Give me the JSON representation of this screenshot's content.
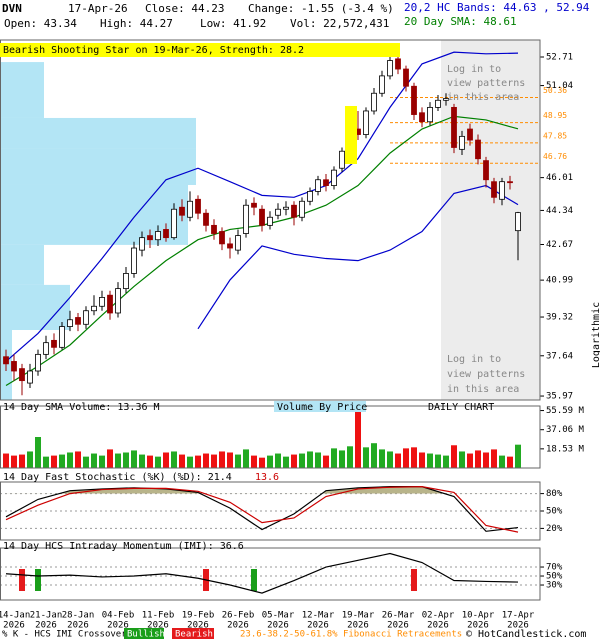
{
  "header": {
    "ticker": "DVN",
    "date": "17-Apr-26",
    "close": "Close: 44.23",
    "change": "Change: -1.55 (-3.4 %)",
    "open": "Open: 43.34",
    "high": "High: 44.27",
    "low": "Low: 41.92",
    "volume": "Vol: 22,572,431",
    "bands": "20,2 HC Bands: 44.63 , 52.94",
    "sma": "20 Day SMA: 48.61"
  },
  "login_note": [
    "Log in to",
    "view patterns",
    "in this area"
  ],
  "footer": {
    "crossover": "% K - HCS IMI Crossover:",
    "fib": "23.6-38.2-50-61.8% Fibonacci Retracements",
    "copyright": "© HotCandlestick.com"
  },
  "chart_data": [
    {
      "type": "candlestick",
      "annotation": "Bearish Shooting Star on 19-Mar-26, Strength: 28.2",
      "axis_label": "Logarithmic",
      "log_scale": true,
      "ylim": [
        35.81,
        53.73
      ],
      "yticks": [
        35.97,
        37.64,
        39.32,
        40.99,
        42.67,
        44.34,
        46.01,
        51.04,
        52.71
      ],
      "up_color": "#ffffff",
      "down_color": "#990000",
      "open": [
        37.6,
        37.4,
        37.1,
        36.5,
        37.0,
        37.7,
        38.3,
        38.0,
        38.9,
        39.3,
        39.0,
        39.6,
        39.8,
        40.3,
        39.5,
        40.6,
        41.3,
        42.4,
        43.1,
        42.9,
        43.4,
        43.0,
        44.5,
        44.0,
        44.9,
        44.2,
        43.6,
        43.3,
        42.7,
        42.4,
        43.2,
        44.7,
        44.4,
        43.6,
        44.1,
        44.4,
        44.6,
        44.0,
        44.8,
        45.3,
        45.9,
        45.6,
        46.5,
        47.4,
        48.6,
        48.3,
        49.6,
        50.6,
        51.6,
        52.6,
        52.0,
        51.0,
        49.5,
        49.0,
        49.8,
        50.2,
        49.8,
        47.5,
        48.6,
        48.0,
        46.9,
        45.8,
        44.9,
        45.8,
        43.34
      ],
      "high": [
        37.9,
        37.7,
        37.3,
        37.3,
        37.9,
        38.5,
        38.6,
        39.1,
        39.6,
        39.5,
        39.8,
        40.3,
        40.5,
        40.5,
        40.9,
        41.6,
        42.8,
        43.3,
        43.4,
        43.6,
        43.7,
        44.7,
        44.9,
        45.3,
        45.1,
        44.4,
        43.9,
        43.5,
        43.0,
        43.4,
        44.9,
        45.0,
        44.6,
        44.3,
        44.7,
        44.8,
        44.8,
        45.0,
        45.5,
        46.1,
        46.2,
        46.6,
        47.6,
        48.5,
        49.6,
        49.8,
        50.9,
        51.9,
        52.8,
        52.9,
        52.2,
        51.2,
        49.8,
        50.1,
        50.5,
        50.6,
        50.0,
        48.5,
        48.9,
        48.3,
        47.1,
        46.0,
        46.0,
        46.1,
        44.27
      ],
      "low": [
        37.0,
        36.6,
        36.0,
        36.3,
        36.8,
        37.5,
        37.7,
        37.9,
        38.7,
        38.7,
        38.8,
        39.4,
        39.6,
        39.2,
        39.3,
        40.4,
        41.1,
        42.1,
        42.5,
        42.6,
        42.8,
        42.9,
        43.8,
        43.8,
        43.9,
        43.3,
        42.9,
        42.4,
        42.0,
        42.2,
        43.0,
        44.1,
        43.3,
        43.4,
        43.9,
        44.1,
        43.6,
        43.8,
        44.6,
        45.1,
        45.3,
        45.4,
        46.3,
        47.2,
        48.0,
        48.1,
        49.4,
        50.4,
        51.4,
        51.7,
        50.7,
        49.1,
        48.7,
        48.8,
        49.6,
        49.9,
        47.3,
        47.2,
        47.7,
        46.7,
        45.5,
        44.7,
        44.6,
        45.4,
        41.92
      ],
      "close": [
        37.3,
        37.0,
        36.6,
        37.0,
        37.7,
        38.2,
        38.0,
        38.9,
        39.2,
        39.0,
        39.6,
        39.8,
        40.2,
        39.5,
        40.6,
        41.3,
        42.5,
        43.0,
        42.9,
        43.3,
        43.0,
        44.4,
        44.1,
        44.8,
        44.2,
        43.6,
        43.2,
        42.7,
        42.5,
        43.1,
        44.6,
        44.5,
        43.6,
        44.0,
        44.4,
        44.5,
        44.0,
        44.8,
        45.3,
        45.9,
        45.6,
        46.4,
        47.4,
        48.2,
        48.3,
        49.6,
        50.6,
        51.6,
        52.5,
        52.0,
        51.0,
        49.4,
        49.0,
        49.8,
        50.2,
        50.3,
        47.6,
        48.2,
        48.0,
        47.0,
        45.9,
        45.0,
        45.8,
        45.78,
        44.23
      ],
      "series": [
        {
          "color": "#0000cc",
          "x": [
            0,
            4,
            8,
            12,
            16,
            20,
            24,
            28,
            32,
            36,
            40,
            44,
            48,
            52,
            56,
            60,
            64
          ],
          "values": [
            37.4,
            38.6,
            40.2,
            42.0,
            44.0,
            45.9,
            46.5,
            45.8,
            45.1,
            45.0,
            45.6,
            47.0,
            49.8,
            52.3,
            53.0,
            52.9,
            52.94
          ]
        },
        {
          "color": "#0000cc",
          "x": [
            24,
            28,
            32,
            36,
            40,
            44,
            48,
            52,
            56,
            60,
            64
          ],
          "values": [
            38.8,
            41.0,
            42.6,
            42.2,
            42.0,
            41.9,
            42.4,
            43.3,
            45.2,
            45.6,
            44.63
          ]
        },
        {
          "color": "#008000",
          "x": [
            0,
            4,
            8,
            12,
            16,
            20,
            24,
            28,
            32,
            36,
            40,
            44,
            48,
            52,
            56,
            60,
            64
          ],
          "values": [
            36.4,
            37.2,
            38.1,
            39.4,
            40.7,
            41.9,
            42.9,
            43.4,
            43.6,
            44.0,
            44.6,
            45.6,
            47.3,
            48.6,
            49.3,
            49.1,
            48.61
          ]
        }
      ],
      "fib_levels": [
        50.36,
        48.95,
        47.85,
        46.76
      ],
      "fib_color": "#ff8c00",
      "volume_by_price": {
        "color": "#b3e5f5",
        "bins": [
          35.81,
          38.75,
          40.77,
          42.65,
          45.63,
          47.57,
          49.21,
          52.41
        ],
        "values": [
          6,
          35,
          22,
          94,
          98,
          98,
          22
        ]
      }
    },
    {
      "type": "volume",
      "title": "14 Day SMA Volume: 13.36 M",
      "annotations": [
        "Volume By Price",
        "DAILY CHART"
      ],
      "ylim": [
        0,
        60
      ],
      "yticks": [
        {
          "value": 18.53,
          "label": "18.53 M"
        },
        {
          "value": 37.06,
          "label": "37.06 M"
        },
        {
          "value": 55.59,
          "label": "55.59 M"
        }
      ],
      "up_color": "#22aa22",
      "down_color": "#ee1111",
      "values": [
        14,
        12,
        13,
        16,
        30,
        11,
        12,
        13,
        15,
        16,
        11,
        14,
        12,
        18,
        14,
        15,
        17,
        13,
        12,
        11,
        15,
        16,
        13,
        11,
        12,
        14,
        13,
        16,
        15,
        13,
        18,
        12,
        10,
        12,
        14,
        11,
        13,
        14,
        16,
        15,
        12,
        19,
        17,
        21,
        55.6,
        20,
        24,
        18,
        16,
        14,
        19,
        20,
        15,
        14,
        13,
        12,
        22,
        16,
        14,
        17,
        15,
        18,
        12,
        11,
        22.57
      ]
    },
    {
      "type": "line",
      "title": "14 Day Fast Stochastic (%K) (%D): 21.4",
      "subtitle": "13.6",
      "grid": true,
      "fill_color": "#b8b48a",
      "ylim": [
        0,
        100
      ],
      "yticks": [
        {
          "value": 20,
          "label": "20%"
        },
        {
          "value": 50,
          "label": "50%"
        },
        {
          "value": 80,
          "label": "80%"
        }
      ],
      "series": [
        {
          "color": "#000000",
          "x": [
            0,
            4,
            8,
            12,
            16,
            20,
            24,
            28,
            32,
            36,
            40,
            44,
            48,
            52,
            56,
            60,
            64
          ],
          "values": [
            40,
            70,
            85,
            88,
            90,
            88,
            82,
            55,
            18,
            45,
            85,
            90,
            92,
            92,
            75,
            15,
            21.4
          ]
        },
        {
          "color": "#cc0000",
          "x": [
            0,
            4,
            8,
            12,
            16,
            20,
            24,
            28,
            32,
            36,
            40,
            44,
            48,
            52,
            56,
            60,
            64
          ],
          "values": [
            35,
            60,
            80,
            87,
            89,
            89,
            84,
            65,
            30,
            38,
            75,
            88,
            91,
            92,
            82,
            25,
            13.6
          ]
        }
      ]
    },
    {
      "type": "line",
      "title": "14 Day HCS Intraday Momentum (IMI): 36.6",
      "grid": true,
      "ylim": [
        -3.3,
        112.3
      ],
      "yticks": [
        {
          "value": 30,
          "label": "30%"
        },
        {
          "value": 50,
          "label": "50%"
        },
        {
          "value": 70,
          "label": "70%"
        }
      ],
      "series": [
        {
          "color": "#000000",
          "x": [
            0,
            4,
            8,
            12,
            16,
            20,
            24,
            28,
            32,
            36,
            40,
            44,
            48,
            52,
            56,
            60,
            64
          ],
          "values": [
            55,
            50,
            52,
            48,
            50,
            55,
            45,
            30,
            12,
            40,
            70,
            85,
            100,
            80,
            40,
            38,
            36.6
          ]
        }
      ],
      "signals": [
        {
          "name": "Bullish",
          "color": "#1a9e1a",
          "x": [
            4,
            31
          ]
        },
        {
          "name": "Bearish",
          "color": "#e41a1c",
          "x": [
            2,
            25,
            51
          ]
        }
      ],
      "categories": [
        null,
        "14-Jan",
        null,
        null,
        null,
        "21-Jan",
        null,
        null,
        null,
        "28-Jan",
        null,
        null,
        null,
        null,
        "04-Feb",
        null,
        null,
        null,
        null,
        "11-Feb",
        null,
        null,
        null,
        null,
        "19-Feb",
        null,
        null,
        null,
        null,
        "26-Feb",
        null,
        null,
        null,
        null,
        "05-Mar",
        null,
        null,
        null,
        null,
        "12-Mar",
        null,
        null,
        null,
        null,
        "19-Mar",
        null,
        null,
        null,
        null,
        "26-Mar",
        null,
        null,
        null,
        null,
        "02-Apr",
        null,
        null,
        null,
        null,
        "10-Apr",
        null,
        null,
        null,
        null,
        "17-Apr"
      ],
      "years": [
        null,
        "2026",
        null,
        null,
        null,
        "2026",
        null,
        null,
        null,
        "2026",
        null,
        null,
        null,
        null,
        "2026",
        null,
        null,
        null,
        null,
        "2026",
        null,
        null,
        null,
        null,
        "2026",
        null,
        null,
        null,
        null,
        "2026",
        null,
        null,
        null,
        null,
        "2026",
        null,
        null,
        null,
        null,
        "2026",
        null,
        null,
        null,
        null,
        "2026",
        null,
        null,
        null,
        null,
        "2026",
        null,
        null,
        null,
        null,
        "2026",
        null,
        null,
        null,
        null,
        "2026",
        null,
        null,
        null,
        null,
        "2026"
      ]
    }
  ]
}
